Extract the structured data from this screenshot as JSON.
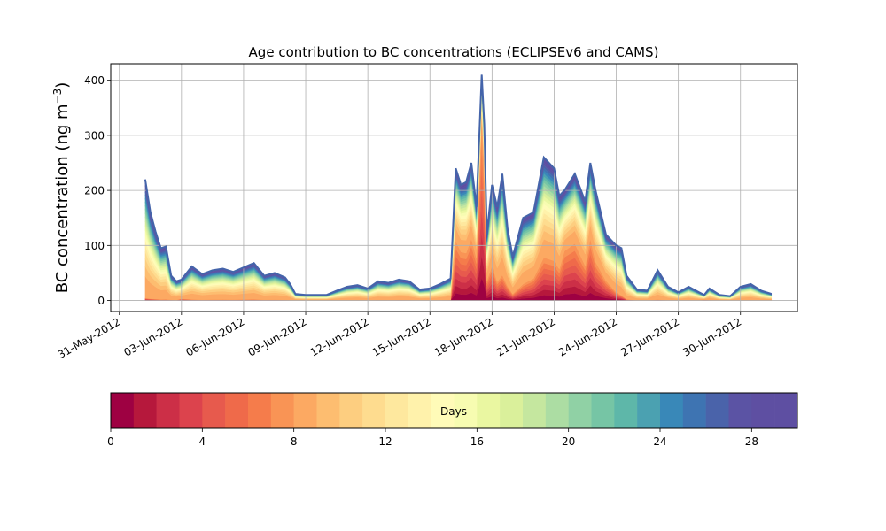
{
  "chart_data": {
    "type": "area",
    "stacked": true,
    "title": "Age contribution to BC concentrations (ECLIPSEv6 and CAMS)",
    "ylabel_main": "BC concentration (ng m",
    "ylabel_sup": "−3",
    "ylabel_close": ")",
    "xlabel": "",
    "x_axis": "date",
    "xlim": [
      "2012-05-30T14:00",
      "2012-07-02T18:00"
    ],
    "ylim": [
      -20,
      430
    ],
    "grid": true,
    "x_ticks": [
      {
        "date": "2012-05-31",
        "label": "31-May-2012"
      },
      {
        "date": "2012-06-03",
        "label": "03-Jun-2012"
      },
      {
        "date": "2012-06-06",
        "label": "06-Jun-2012"
      },
      {
        "date": "2012-06-09",
        "label": "09-Jun-2012"
      },
      {
        "date": "2012-06-12",
        "label": "12-Jun-2012"
      },
      {
        "date": "2012-06-15",
        "label": "15-Jun-2012"
      },
      {
        "date": "2012-06-18",
        "label": "18-Jun-2012"
      },
      {
        "date": "2012-06-21",
        "label": "21-Jun-2012"
      },
      {
        "date": "2012-06-24",
        "label": "24-Jun-2012"
      },
      {
        "date": "2012-06-27",
        "label": "27-Jun-2012"
      },
      {
        "date": "2012-06-30",
        "label": "30-Jun-2012"
      }
    ],
    "y_ticks": [
      0,
      100,
      200,
      300,
      400
    ],
    "series_axis_label": "Days",
    "series_age_days": [
      0,
      1,
      2,
      3,
      4,
      5,
      6,
      7,
      8,
      9,
      10,
      11,
      12,
      13,
      14,
      15,
      16,
      17,
      18,
      19,
      20,
      21,
      22,
      23,
      24,
      25,
      26,
      27,
      28,
      29
    ],
    "series_colors": [
      "#9e0142",
      "#b6183c",
      "#cc2f47",
      "#dc434d",
      "#e75a4d",
      "#ef6a4a",
      "#f57c4b",
      "#f99455",
      "#fca962",
      "#fdbd70",
      "#fdce80",
      "#fedc8f",
      "#fee89e",
      "#fff2ab",
      "#fffbb8",
      "#f7fcb1",
      "#eaf7a1",
      "#daf09b",
      "#c5e79f",
      "#acdda3",
      "#90d1a5",
      "#76c5a5",
      "#5eb7a9",
      "#4ba1b1",
      "#3988b8",
      "#3e74b2",
      "#4a63aa",
      "#5b53a4",
      "#5e4fa2",
      "#5e4fa2"
    ],
    "dates": [
      "2012-06-01T06:00",
      "2012-06-01T12:00",
      "2012-06-01T18:00",
      "2012-06-02T00:00",
      "2012-06-02T06:00",
      "2012-06-02T12:00",
      "2012-06-02T18:00",
      "2012-06-03T00:00",
      "2012-06-03T12:00",
      "2012-06-04T00:00",
      "2012-06-04T12:00",
      "2012-06-05T00:00",
      "2012-06-05T12:00",
      "2012-06-06T00:00",
      "2012-06-06T12:00",
      "2012-06-07T00:00",
      "2012-06-07T12:00",
      "2012-06-08T00:00",
      "2012-06-08T06:00",
      "2012-06-08T12:00",
      "2012-06-09T00:00",
      "2012-06-09T12:00",
      "2012-06-10T00:00",
      "2012-06-10T12:00",
      "2012-06-11T00:00",
      "2012-06-11T12:00",
      "2012-06-12T00:00",
      "2012-06-12T12:00",
      "2012-06-13T00:00",
      "2012-06-13T12:00",
      "2012-06-14T00:00",
      "2012-06-14T12:00",
      "2012-06-15T00:00",
      "2012-06-15T12:00",
      "2012-06-16T00:00",
      "2012-06-16T06:00",
      "2012-06-16T12:00",
      "2012-06-16T18:00",
      "2012-06-17T00:00",
      "2012-06-17T06:00",
      "2012-06-17T12:00",
      "2012-06-17T15:00",
      "2012-06-17T18:00",
      "2012-06-18T00:00",
      "2012-06-18T06:00",
      "2012-06-18T12:00",
      "2012-06-18T18:00",
      "2012-06-19T00:00",
      "2012-06-19T12:00",
      "2012-06-20T00:00",
      "2012-06-20T12:00",
      "2012-06-21T00:00",
      "2012-06-21T06:00",
      "2012-06-21T12:00",
      "2012-06-22T00:00",
      "2012-06-22T12:00",
      "2012-06-22T18:00",
      "2012-06-23T00:00",
      "2012-06-23T12:00",
      "2012-06-24T00:00",
      "2012-06-24T06:00",
      "2012-06-24T12:00",
      "2012-06-25T00:00",
      "2012-06-25T12:00",
      "2012-06-26T00:00",
      "2012-06-26T12:00",
      "2012-06-27T00:00",
      "2012-06-27T12:00",
      "2012-06-28T00:00",
      "2012-06-28T06:00",
      "2012-06-28T12:00",
      "2012-06-29T00:00",
      "2012-06-29T12:00",
      "2012-06-30T00:00",
      "2012-06-30T12:00",
      "2012-07-01T00:00",
      "2012-07-01T12:00"
    ],
    "total": [
      220,
      160,
      125,
      95,
      98,
      45,
      35,
      38,
      62,
      48,
      55,
      58,
      52,
      60,
      68,
      45,
      50,
      42,
      30,
      12,
      10,
      10,
      10,
      18,
      25,
      28,
      22,
      35,
      32,
      38,
      35,
      20,
      22,
      30,
      40,
      240,
      210,
      215,
      250,
      170,
      410,
      320,
      120,
      210,
      170,
      230,
      130,
      80,
      150,
      160,
      260,
      240,
      190,
      200,
      230,
      180,
      250,
      200,
      120,
      100,
      95,
      45,
      20,
      18,
      55,
      25,
      15,
      25,
      15,
      10,
      22,
      10,
      8,
      25,
      30,
      18,
      12
    ],
    "young_fraction": [
      0.02,
      0.02,
      0.02,
      0.02,
      0.02,
      0.03,
      0.03,
      0.08,
      0.03,
      0.03,
      0.03,
      0.03,
      0.03,
      0.03,
      0.03,
      0.03,
      0.03,
      0.03,
      0.03,
      0.03,
      0.03,
      0.03,
      0.03,
      0.03,
      0.03,
      0.03,
      0.03,
      0.03,
      0.03,
      0.03,
      0.03,
      0.03,
      0.03,
      0.03,
      0.03,
      0.45,
      0.42,
      0.4,
      0.45,
      0.45,
      0.8,
      0.7,
      0.3,
      0.3,
      0.2,
      0.2,
      0.2,
      0.15,
      0.2,
      0.25,
      0.3,
      0.3,
      0.3,
      0.45,
      0.45,
      0.35,
      0.45,
      0.35,
      0.3,
      0.15,
      0.1,
      0.05,
      0.03,
      0.03,
      0.03,
      0.03,
      0.03,
      0.03,
      0.03,
      0.15,
      0.05,
      0.03,
      0.03,
      0.03,
      0.03,
      0.03,
      0.03
    ],
    "colorbar": {
      "label": "Days",
      "ticks": [
        0,
        4,
        8,
        12,
        16,
        20,
        24,
        28
      ],
      "range": [
        0,
        30
      ]
    }
  }
}
